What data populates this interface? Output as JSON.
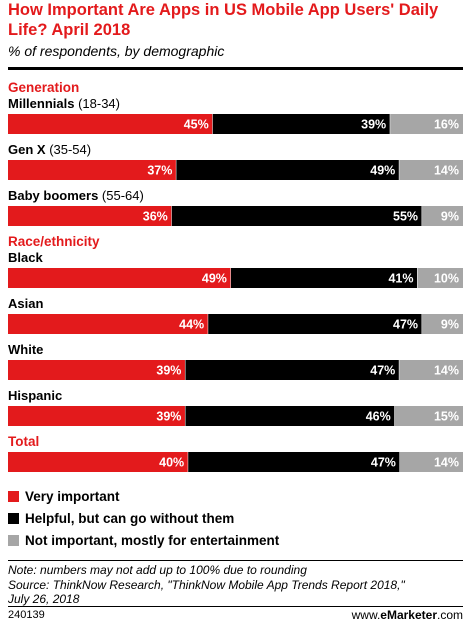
{
  "title": "How Important Are Apps in US Mobile App Users' Daily Life? April 2018",
  "subtitle": "% of respondents, by demographic",
  "colors": {
    "very": "#e31a1c",
    "helpful": "#000000",
    "not": "#a6a6a6",
    "accent": "#e31a1c"
  },
  "chart_data": {
    "type": "bar",
    "orientation": "horizontal",
    "stacked": true,
    "title": "How Important Are Apps in US Mobile App Users' Daily Life? April 2018",
    "subtitle": "% of respondents, by demographic",
    "xlim": [
      0,
      100
    ],
    "legend": "bottom",
    "groups": [
      {
        "label": "Generation",
        "rows": [
          {
            "label": "Millennials",
            "sublabel": "(18-34)",
            "values": [
              45,
              39,
              16
            ]
          },
          {
            "label": "Gen X",
            "sublabel": "(35-54)",
            "values": [
              37,
              49,
              14
            ]
          },
          {
            "label": "Baby boomers",
            "sublabel": "(55-64)",
            "values": [
              36,
              55,
              9
            ]
          }
        ]
      },
      {
        "label": "Race/ethnicity",
        "rows": [
          {
            "label": "Black",
            "sublabel": "",
            "values": [
              49,
              41,
              10
            ]
          },
          {
            "label": "Asian",
            "sublabel": "",
            "values": [
              44,
              47,
              9
            ]
          },
          {
            "label": "White",
            "sublabel": "",
            "values": [
              39,
              47,
              14
            ]
          },
          {
            "label": "Hispanic",
            "sublabel": "",
            "values": [
              39,
              46,
              15
            ]
          }
        ]
      },
      {
        "label": "Total",
        "rows": [
          {
            "label": "",
            "sublabel": "",
            "values": [
              40,
              47,
              14
            ]
          }
        ]
      }
    ],
    "series": [
      {
        "name": "Very important"
      },
      {
        "name": "Helpful, but can go without them"
      },
      {
        "name": "Not important, mostly for entertainment"
      }
    ]
  },
  "notes": {
    "line1": "Note: numbers may not add up to 100% due to rounding",
    "line2": "Source: ThinkNow Research, \"ThinkNow Mobile App Trends Report 2018,\"",
    "line3": "July 26, 2018"
  },
  "footer": {
    "code": "240139",
    "brand_prefix": "www.",
    "brand_name": "eMarketer",
    "brand_suffix": ".com"
  }
}
